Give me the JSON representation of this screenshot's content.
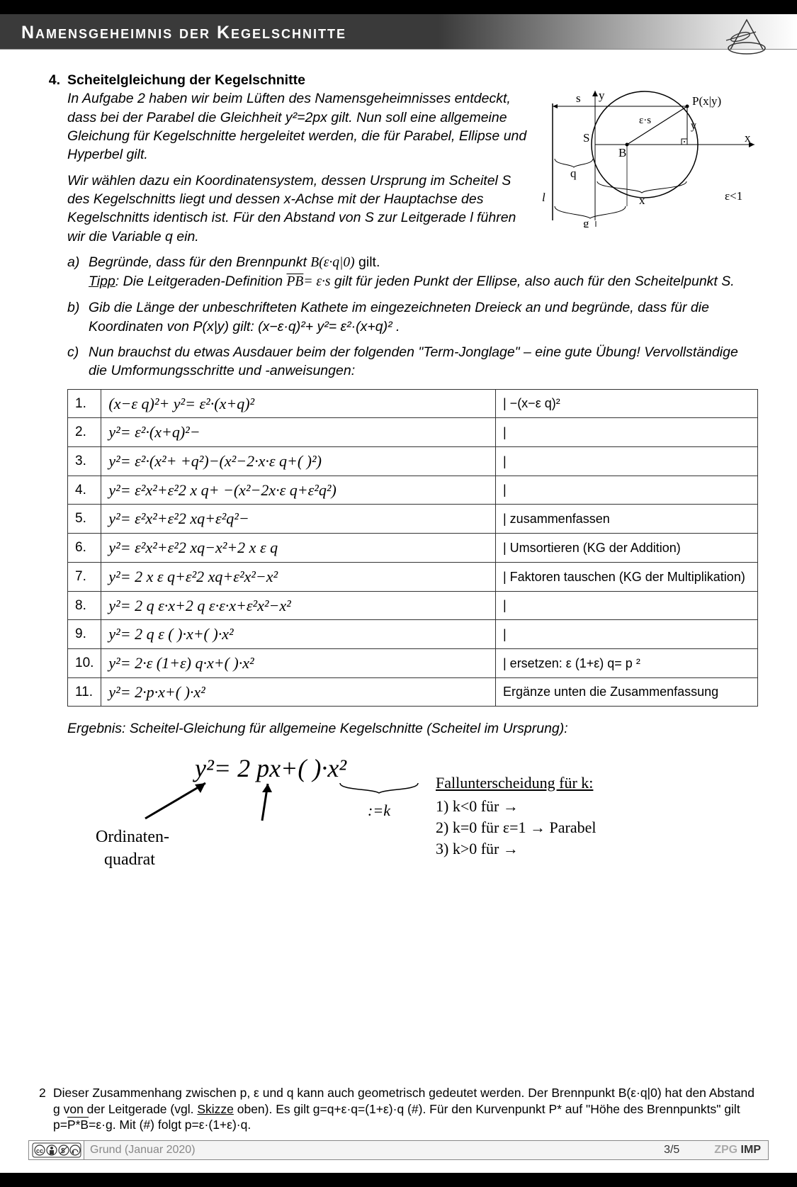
{
  "header": {
    "title": "Namensgeheimnis der Kegelschnitte"
  },
  "task": {
    "number": "4.",
    "title": "Scheitelgleichung der Kegelschnitte",
    "intro": "In Aufgabe 2 haben wir beim Lüften des Namensgeheimnisses entdeckt, dass bei der Parabel die Gleichheit y²=2px gilt. Nun soll  eine allgemeine Gleichung für Kegelschnitte hergeleitet werden, die für Parabel, Ellipse und Hyperbel gilt.",
    "para2": "Wir wählen dazu ein Koordinatensystem, dessen Ursprung im Scheitel S des Kegelschnitts liegt und dessen x-Achse mit der Hauptachse des Kegelschnitts identisch ist. Für den Abstand von S zur Leitgerade l führen wir die Variable q ein.",
    "a_letter": "a)",
    "a_text_before_B": "Begründe, dass für den Brennpunkt  ",
    "a_B": "B(ε·q|0)",
    "a_gilt": "  gilt.",
    "a_tipp_label": "Tipp",
    "a_tipp_text": ": Die Leitgeraden-Definition   ",
    "a_PB": "PB",
    "a_eq": "= ε·s",
    "a_tipp_tail": "   gilt für jeden Punkt der Ellipse, also auch für den Scheitelpunkt S.",
    "b_letter": "b)",
    "b_text": "Gib die Länge der unbeschrifteten Kathete im eingezeichneten Dreieck an und begründe, dass für die Koordinaten von P(x|y) gilt:    (x−ε·q)²+ y²= ε²·(x+q)²   .",
    "c_letter": "c)",
    "c_text": "Nun brauchst du etwas Ausdauer beim der folgenden \"Term-Jonglage\" – eine gute Übung! Vervollständige die Umformungsschritte und -anweisungen:"
  },
  "steps": [
    {
      "n": "1.",
      "eq": "(x−ε q)²+ y²= ε²·(x+q)²",
      "note": "|   −(x−ε q)²"
    },
    {
      "n": "2.",
      "eq": "y²= ε²·(x+q)²−",
      "note": "|"
    },
    {
      "n": "3.",
      "eq": "y²= ε²·(x²+          +q²)−(x²−2·x·ε q+(      )²)",
      "note": "|"
    },
    {
      "n": "4.",
      "eq": "y²= ε²x²+ε²2 x q+        −(x²−2x·ε q+ε²q²)",
      "note": "|"
    },
    {
      "n": "5.",
      "eq": "y²= ε²x²+ε²2 xq+ε²q²−",
      "note": "| zusammenfassen"
    },
    {
      "n": "6.",
      "eq": "y²= ε²x²+ε²2 xq−x²+2 x ε q",
      "note": "| Umsortieren (KG der Addition)"
    },
    {
      "n": "7.",
      "eq": "y²= 2 x ε q+ε²2 xq+ε²x²−x²",
      "note": "| Faktoren tauschen (KG der Multiplikation)"
    },
    {
      "n": "8.",
      "eq": "y²= 2 q ε·x+2 q ε·ε·x+ε²x²−x²",
      "note": "|"
    },
    {
      "n": "9.",
      "eq": "y²= 2 q ε (         )·x+(         )·x²",
      "note": "|"
    },
    {
      "n": "10.",
      "eq": "y²= 2·ε (1+ε) q·x+(         )·x²",
      "note": "| ersetzen:    ε (1+ε) q= p   ²"
    },
    {
      "n": "11.",
      "eq": "y²= 2·p·x+(         )·x²",
      "note": "Ergänze unten die Zusammenfassung"
    }
  ],
  "result": {
    "line": "Ergebnis: Scheitel-Gleichung für allgemeine Kegelschnitte (Scheitel im Ursprung):",
    "formula": "y²= 2 px+(          )·x²",
    "under_brace": ":=k",
    "ord": "Ordinaten-\nquadrat",
    "fall_title": "Fallunterscheidung für k:",
    "case1": "1) k<0 für        →",
    "case2": "2) k=0 für ε=1 → Parabel",
    "case3": "3) k>0 für        →"
  },
  "diagram": {
    "labels": {
      "s": "s",
      "y": "y",
      "P": "P(x|y)",
      "es": "ε·s",
      "yv": "y",
      "S": "S",
      "B": "B",
      "x": "x",
      "q": "q",
      "xu": "x",
      "eps": "ε<1",
      "l": "l",
      "g": "g"
    }
  },
  "footnote": {
    "n": "2",
    "text": "Dieser Zusammenhang zwischen p, ε und q kann auch geometrisch gedeutet werden. Der Brennpunkt B(ε·q|0) hat den Abstand g von der Leitgerade (vgl. Skizze oben). Es gilt g=q+ε·q=(1+ε)·q (#). Für den Kurvenpunkt P* auf \"Höhe des Brennpunkts\" gilt p=P*B=ε·g. Mit (#) folgt p=ε·(1+ε)·q.",
    "skizze_underline_start": 128,
    "skizze_underline_len": 6,
    "ov1": "P*B"
  },
  "footer": {
    "author": "Grund (Januar 2020)",
    "page": "3/5",
    "zpg1": "ZPG ",
    "zpg2": "IMP"
  }
}
